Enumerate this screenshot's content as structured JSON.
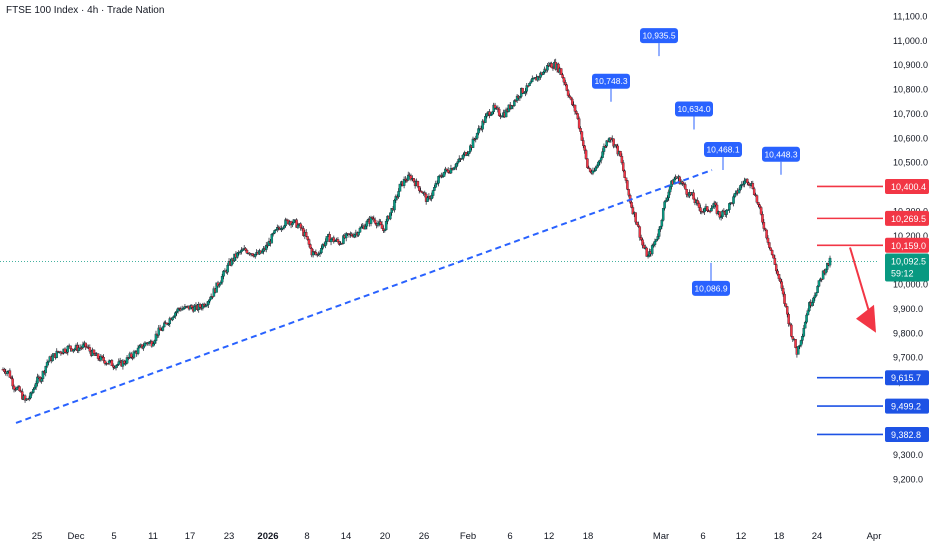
{
  "header": {
    "title": "FTSE 100 Index · 4h · Trade Nation"
  },
  "colors": {
    "up": "#089981",
    "down": "#f23645",
    "trend": "#2962ff",
    "marker": "#2962ff",
    "resistance": "#f23645",
    "support": "#1e53e5",
    "current": "#089981",
    "arrow": "#f23645"
  },
  "chart_data": {
    "type": "candlestick",
    "y_axis": {
      "min": 9150,
      "max": 11150,
      "ticks": [
        11100,
        11000,
        10900,
        10800,
        10700,
        10600,
        10500,
        10400,
        10300,
        10200,
        10100,
        10000,
        9900,
        9800,
        9700,
        9600,
        9500,
        9400,
        9300,
        9200
      ],
      "tick_labels": [
        "11,100.0",
        "11,000.0",
        "10,900.0",
        "10,800.0",
        "10,700.0",
        "10,600.0",
        "10,500.0",
        "10,400.0",
        "10,300.0",
        "10,200.0",
        "10,100.0",
        "10,000.0",
        "9,900.0",
        "9,800.0",
        "9,700.0",
        "9,600.0",
        "9,500.0",
        "9,400.0",
        "9,300.0",
        "9,200.0"
      ]
    },
    "x_axis": {
      "labels": [
        {
          "label": "25",
          "bold": false
        },
        {
          "label": "Dec",
          "bold": false
        },
        {
          "label": "5",
          "bold": false
        },
        {
          "label": "11",
          "bold": false
        },
        {
          "label": "17",
          "bold": false
        },
        {
          "label": "23",
          "bold": false
        },
        {
          "label": "2026",
          "bold": true
        },
        {
          "label": "8",
          "bold": false
        },
        {
          "label": "14",
          "bold": false
        },
        {
          "label": "20",
          "bold": false
        },
        {
          "label": "26",
          "bold": false
        },
        {
          "label": "Feb",
          "bold": false
        },
        {
          "label": "6",
          "bold": false
        },
        {
          "label": "12",
          "bold": false
        },
        {
          "label": "18",
          "bold": false
        },
        {
          "label": "Mar",
          "bold": false
        },
        {
          "label": "6",
          "bold": false
        },
        {
          "label": "12",
          "bold": false
        },
        {
          "label": "18",
          "bold": false
        },
        {
          "label": "24",
          "bold": false
        },
        {
          "label": "Apr",
          "bold": false
        }
      ]
    },
    "price_path": [
      9650,
      9640,
      9580,
      9560,
      9520,
      9540,
      9600,
      9620,
      9680,
      9700,
      9720,
      9730,
      9740,
      9735,
      9740,
      9745,
      9720,
      9700,
      9690,
      9680,
      9670,
      9670,
      9680,
      9700,
      9720,
      9740,
      9760,
      9760,
      9800,
      9820,
      9850,
      9880,
      9900,
      9900,
      9905,
      9900,
      9910,
      9930,
      9960,
      10000,
      10040,
      10080,
      10110,
      10130,
      10140,
      10130,
      10120,
      10130,
      10160,
      10200,
      10230,
      10250,
      10260,
      10250,
      10230,
      10190,
      10130,
      10120,
      10160,
      10190,
      10180,
      10170,
      10190,
      10200,
      10210,
      10230,
      10250,
      10270,
      10250,
      10220,
      10280,
      10330,
      10400,
      10430,
      10440,
      10410,
      10380,
      10340,
      10380,
      10430,
      10460,
      10470,
      10490,
      10510,
      10540,
      10570,
      10620,
      10660,
      10700,
      10720,
      10700,
      10700,
      10730,
      10760,
      10790,
      10800,
      10830,
      10850,
      10870,
      10900,
      10900,
      10880,
      10820,
      10750,
      10700,
      10600,
      10480,
      10450,
      10500,
      10560,
      10610,
      10570,
      10520,
      10410,
      10320,
      10250,
      10160,
      10110,
      10160,
      10220,
      10330,
      10400,
      10440,
      10420,
      10380,
      10360,
      10320,
      10300,
      10310,
      10320,
      10280,
      10300,
      10330,
      10370,
      10410,
      10430,
      10400,
      10320,
      10240,
      10160,
      10080,
      10000,
      9900,
      9800,
      9720,
      9800,
      9900,
      9950,
      10000,
      10060,
      10092
    ],
    "annotations": [
      {
        "label": "10,935.5",
        "price": 10935.5,
        "type": "high"
      },
      {
        "label": "10,748.3",
        "price": 10748.3,
        "type": "high"
      },
      {
        "label": "10,634.0",
        "price": 10634.0,
        "type": "high"
      },
      {
        "label": "10,468.1",
        "price": 10468.1,
        "type": "high"
      },
      {
        "label": "10,448.3",
        "price": 10448.3,
        "type": "high"
      },
      {
        "label": "10,086.9",
        "price": 10086.9,
        "type": "low"
      }
    ],
    "resistance_levels": [
      {
        "label": "10,400.4",
        "price": 10400.4
      },
      {
        "label": "10,269.5",
        "price": 10269.5
      },
      {
        "label": "10,159.0",
        "price": 10159.0
      }
    ],
    "support_levels": [
      {
        "label": "9,615.7",
        "price": 9615.7
      },
      {
        "label": "9,499.2",
        "price": 9499.2
      },
      {
        "label": "9,382.8",
        "price": 9382.8
      }
    ],
    "current_price": {
      "label": "10,092.5",
      "price": 10092.5,
      "countdown": "59:12"
    },
    "trendline": {
      "from_price": 9430,
      "to_price": 10468
    },
    "forecast_arrow": {
      "direction": "down",
      "from_price": 10150,
      "to_price": 9800
    }
  }
}
